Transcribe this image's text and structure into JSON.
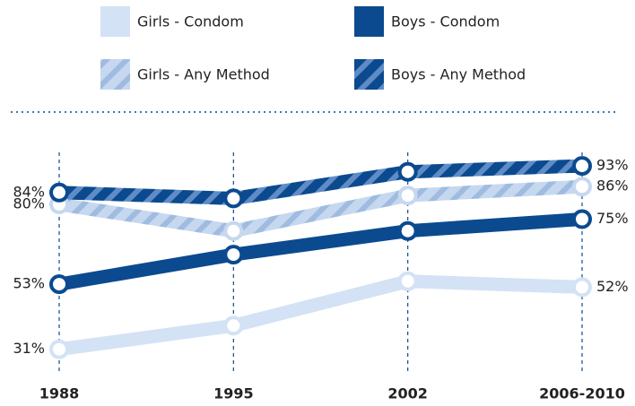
{
  "chart_data": {
    "type": "line",
    "categories": [
      "1988",
      "1995",
      "2002",
      "2006-2010"
    ],
    "series": [
      {
        "name": "Girls - Condom",
        "color": "#d3e2f5",
        "pattern": "solid",
        "values": [
          31,
          39,
          54,
          52
        ],
        "value_labels": [
          "31%",
          null,
          null,
          "52%"
        ]
      },
      {
        "name": "Boys - Condom",
        "color": "#0b4a8f",
        "pattern": "solid",
        "values": [
          53,
          63,
          71,
          75
        ],
        "value_labels": [
          "53%",
          null,
          null,
          "75%"
        ]
      },
      {
        "name": "Girls - Any Method",
        "color": "#c6d8ef",
        "stripe": "#9fbce0",
        "pattern": "hatched",
        "values": [
          80,
          71,
          83,
          86
        ],
        "value_labels": [
          "80%",
          null,
          null,
          "86%"
        ]
      },
      {
        "name": "Boys - Any Method",
        "color": "#0b4a8f",
        "stripe": "#5f8cc6",
        "pattern": "hatched",
        "values": [
          84,
          82,
          91,
          93
        ],
        "value_labels": [
          "84%",
          null,
          null,
          "93%"
        ]
      }
    ],
    "ylim": [
      20,
      100
    ]
  }
}
